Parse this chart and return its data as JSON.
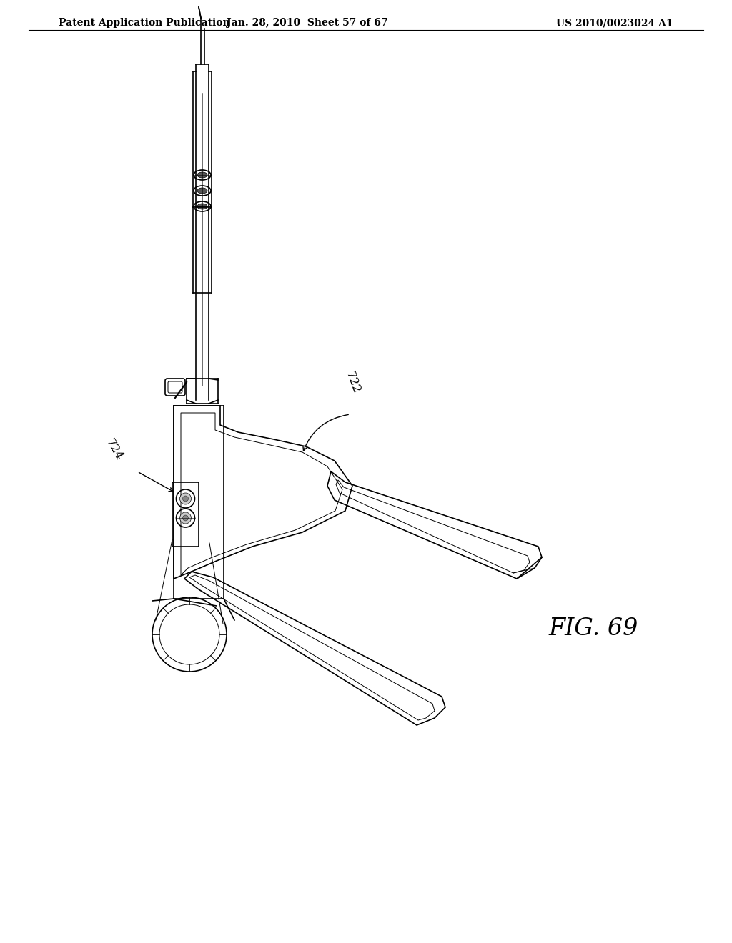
{
  "background_color": "#ffffff",
  "header_left": "Patent Application Publication",
  "header_center": "Jan. 28, 2010  Sheet 57 of 67",
  "header_right": "US 2010/0023024 A1",
  "figure_label": "FIG. 69",
  "label_722": "722",
  "label_724": "724",
  "header_fontsize": 10,
  "label_fontsize": 12
}
